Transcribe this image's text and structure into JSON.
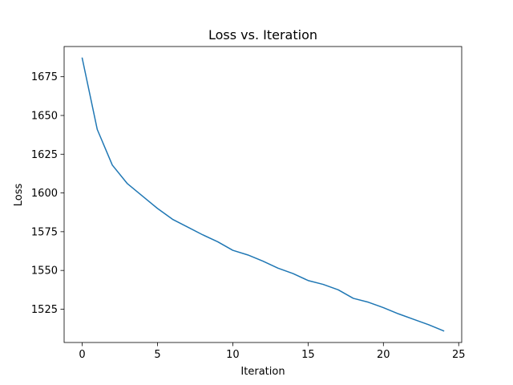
{
  "chart_data": {
    "type": "line",
    "title": "Loss vs. Iteration",
    "xlabel": "Iteration",
    "ylabel": "Loss",
    "xlim": [
      -1.2,
      25.2
    ],
    "ylim": [
      1503.5,
      1694.5
    ],
    "xticks": [
      0,
      5,
      10,
      15,
      20,
      25
    ],
    "yticks": [
      1525,
      1550,
      1575,
      1600,
      1625,
      1650,
      1675
    ],
    "grid": false,
    "legend": false,
    "series": [
      {
        "color": "#1f77b4",
        "x": [
          0,
          1,
          2,
          3,
          4,
          5,
          6,
          7,
          8,
          9,
          10,
          11,
          12,
          13,
          14,
          15,
          16,
          17,
          18,
          19,
          20,
          21,
          22,
          23,
          24
        ],
        "y": [
          1687,
          1641,
          1618,
          1606,
          1598,
          1590,
          1583,
          1578,
          1573,
          1568.5,
          1563,
          1560,
          1556,
          1551.5,
          1548,
          1543.5,
          1541,
          1537.5,
          1532,
          1529.5,
          1526,
          1522,
          1518.5,
          1515,
          1511
        ]
      }
    ]
  }
}
